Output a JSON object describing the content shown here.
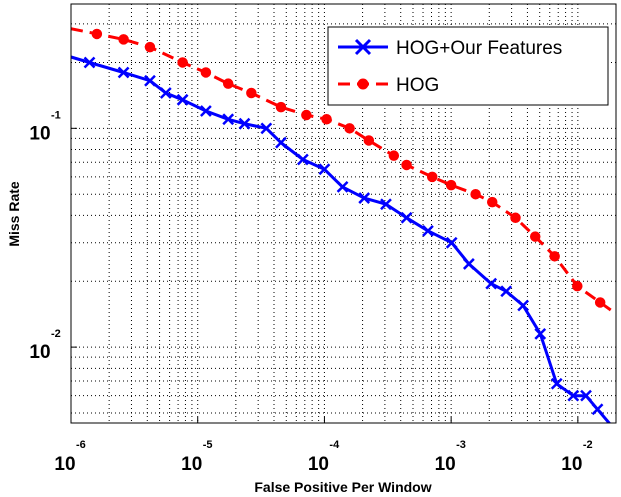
{
  "chart_data": {
    "type": "line",
    "xlabel": "False Positive Per Window",
    "ylabel": "Miss Rate",
    "x_scale": "log",
    "y_scale": "log",
    "xlim": [
      1e-06,
      0.02
    ],
    "ylim": [
      0.0045,
      0.37
    ],
    "grid": true,
    "legend_position": "top-right",
    "x_ticks": [
      {
        "base": "10",
        "exp": "-6"
      },
      {
        "base": "10",
        "exp": "-5"
      },
      {
        "base": "10",
        "exp": "-4"
      },
      {
        "base": "10",
        "exp": "-3"
      },
      {
        "base": "10",
        "exp": "-2"
      }
    ],
    "y_ticks": [
      {
        "base": "10",
        "exp": "-1"
      },
      {
        "base": "10",
        "exp": "-2"
      }
    ],
    "series": [
      {
        "name": "HOG+Our Features",
        "color": "#0000ff",
        "marker": "x",
        "style": "solid",
        "x": [
          1.4e-06,
          2.6e-06,
          4.2e-06,
          5.6e-06,
          7.6e-06,
          1.16e-05,
          1.74e-05,
          2.34e-05,
          3.48e-05,
          4.54e-05,
          6.76e-05,
          0.0001,
          0.000139,
          0.000206,
          0.000306,
          0.000445,
          0.000656,
          0.00101,
          0.00138,
          0.00207,
          0.00272,
          0.0037,
          0.00505,
          0.00681,
          0.0092,
          0.0116,
          0.0143
        ],
        "y": [
          0.2,
          0.18,
          0.165,
          0.145,
          0.135,
          0.12,
          0.11,
          0.105,
          0.1,
          0.086,
          0.072,
          0.065,
          0.054,
          0.048,
          0.045,
          0.039,
          0.034,
          0.03,
          0.024,
          0.0195,
          0.018,
          0.0155,
          0.0115,
          0.0068,
          0.006,
          0.006,
          0.0052
        ]
      },
      {
        "name": "HOG",
        "color": "#ff0000",
        "marker": "o",
        "style": "dashed",
        "x": [
          1.6e-06,
          2.6e-06,
          4.2e-06,
          7.6e-06,
          1.16e-05,
          1.74e-05,
          2.65e-05,
          4.54e-05,
          7.2e-05,
          0.000104,
          0.000158,
          0.000224,
          0.000353,
          0.000445,
          0.000709,
          0.001,
          0.00156,
          0.00211,
          0.00322,
          0.00461,
          0.00656,
          0.0099,
          0.015
        ],
        "y": [
          0.27,
          0.255,
          0.235,
          0.2,
          0.18,
          0.16,
          0.145,
          0.125,
          0.115,
          0.11,
          0.1,
          0.088,
          0.075,
          0.068,
          0.06,
          0.055,
          0.05,
          0.046,
          0.039,
          0.032,
          0.026,
          0.019,
          0.016
        ]
      }
    ]
  }
}
